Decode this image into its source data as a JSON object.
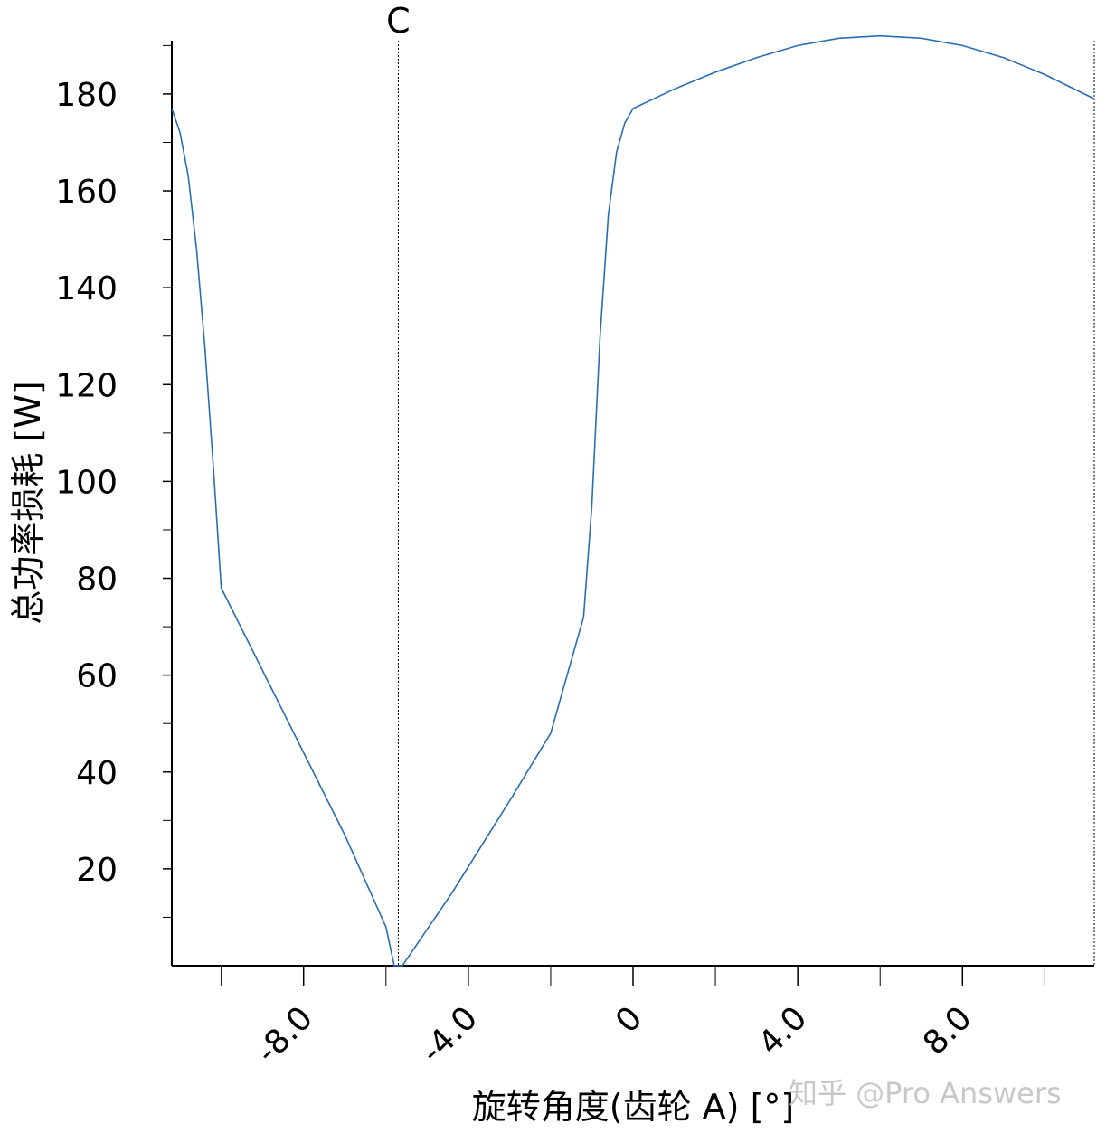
{
  "chart_data": {
    "type": "line",
    "xlabel": "旋转角度(齿轮 A) [°]",
    "ylabel": "总功率损耗 [W]",
    "xlim": [
      -11.2,
      11.2
    ],
    "ylim": [
      0,
      191
    ],
    "x_ticks": [
      "-8.0",
      "-4.0",
      "0",
      "4.0",
      "8.0"
    ],
    "y_ticks": [
      "20",
      "40",
      "60",
      "80",
      "100",
      "120",
      "140",
      "160",
      "180"
    ],
    "vertical_marker": {
      "label": "C",
      "x": -5.7
    },
    "grid": false,
    "line_color": "#2a6db5",
    "series": [
      {
        "points": [
          [
            -11.2,
            177
          ],
          [
            -11.0,
            172
          ],
          [
            -10.8,
            163
          ],
          [
            -10.6,
            148
          ],
          [
            -10.4,
            128
          ],
          [
            -10.2,
            104
          ],
          [
            -10.0,
            78
          ],
          [
            -9.0,
            61
          ],
          [
            -8.0,
            44
          ],
          [
            -7.0,
            27
          ],
          [
            -6.0,
            8
          ],
          [
            -5.8,
            0
          ],
          [
            -5.6,
            0
          ],
          [
            -4.4,
            15
          ],
          [
            -3.0,
            34
          ],
          [
            -2.0,
            48
          ],
          [
            -1.2,
            72
          ],
          [
            -1.0,
            95
          ],
          [
            -0.8,
            130
          ],
          [
            -0.6,
            155
          ],
          [
            -0.4,
            168
          ],
          [
            -0.2,
            174
          ],
          [
            0.0,
            177
          ],
          [
            1.0,
            181
          ],
          [
            2.0,
            184.5
          ],
          [
            3.0,
            187.5
          ],
          [
            4.0,
            190
          ],
          [
            5.0,
            191.5
          ],
          [
            6.0,
            192
          ],
          [
            7.0,
            191.5
          ],
          [
            8.0,
            190
          ],
          [
            9.0,
            187.5
          ],
          [
            10.0,
            184
          ],
          [
            11.2,
            179
          ]
        ]
      }
    ]
  },
  "watermark": "知乎 @Pro Answers"
}
